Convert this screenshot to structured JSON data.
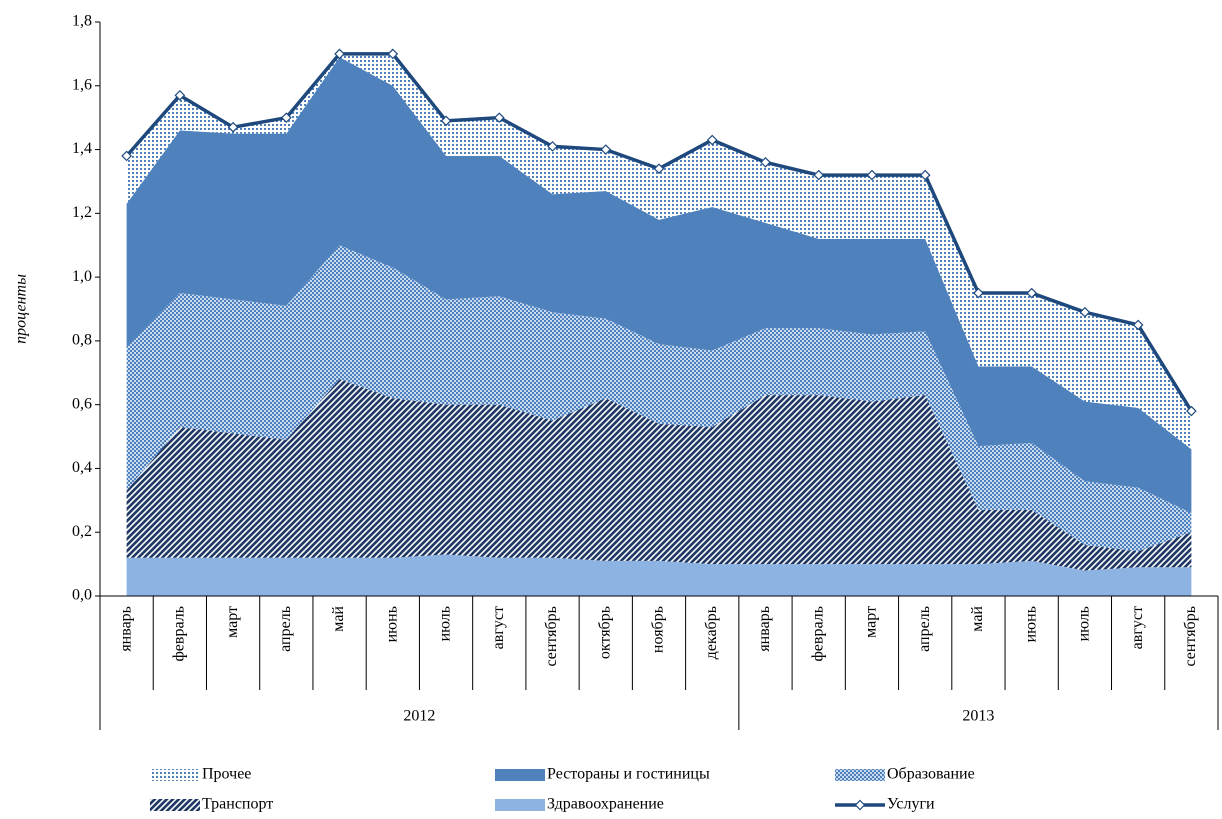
{
  "chart_data": {
    "type": "stacked_area_line",
    "y_label": "проценты",
    "categories": [
      "январь",
      "февраль",
      "март",
      "апрель",
      "май",
      "июнь",
      "июль",
      "август",
      "сентябрь",
      "октябрь",
      "ноябрь",
      "декабрь",
      "январь",
      "февраль",
      "март",
      "апрель",
      "май",
      "июнь",
      "июль",
      "август",
      "сентябрь"
    ],
    "x_groups": [
      {
        "label": "2012",
        "span": 12
      },
      {
        "label": "2013",
        "span": 9
      }
    ],
    "ylim": [
      0,
      1.8
    ],
    "yticks": [
      {
        "value": 0,
        "label": "0,0"
      },
      {
        "value": 0.2,
        "label": "0,2"
      },
      {
        "value": 0.4,
        "label": "0,4"
      },
      {
        "value": 0.6,
        "label": "0,6"
      },
      {
        "value": 0.8,
        "label": "0,8"
      },
      {
        "value": 1.0,
        "label": "1,0"
      },
      {
        "value": 1.2,
        "label": "1,2"
      },
      {
        "value": 1.4,
        "label": "1,4"
      },
      {
        "value": 1.6,
        "label": "1,6"
      },
      {
        "value": 1.8,
        "label": "1,8"
      }
    ],
    "series": [
      {
        "name": "Здравоохранение",
        "color": "#8db3e2",
        "pattern": "solid",
        "values": [
          0.12,
          0.12,
          0.12,
          0.12,
          0.12,
          0.12,
          0.13,
          0.12,
          0.12,
          0.11,
          0.11,
          0.1,
          0.1,
          0.1,
          0.1,
          0.1,
          0.1,
          0.11,
          0.08,
          0.09,
          0.09
        ]
      },
      {
        "name": "Транспорт",
        "color": "#1f3864",
        "pattern": "diagonal",
        "values": [
          0.21,
          0.41,
          0.39,
          0.37,
          0.56,
          0.5,
          0.47,
          0.48,
          0.43,
          0.51,
          0.43,
          0.43,
          0.53,
          0.53,
          0.51,
          0.53,
          0.17,
          0.16,
          0.08,
          0.05,
          0.11
        ]
      },
      {
        "name": "Образование",
        "color": "#4f81bd",
        "pattern": "checker",
        "values": [
          0.45,
          0.42,
          0.42,
          0.42,
          0.42,
          0.41,
          0.33,
          0.34,
          0.34,
          0.25,
          0.25,
          0.24,
          0.21,
          0.21,
          0.21,
          0.2,
          0.2,
          0.21,
          0.2,
          0.2,
          0.06
        ]
      },
      {
        "name": "Рестораны и гостиницы",
        "color": "#4f81bd",
        "pattern": "solid",
        "values": [
          0.45,
          0.51,
          0.52,
          0.54,
          0.59,
          0.57,
          0.45,
          0.44,
          0.37,
          0.4,
          0.39,
          0.45,
          0.33,
          0.28,
          0.3,
          0.29,
          0.25,
          0.24,
          0.25,
          0.25,
          0.2
        ]
      },
      {
        "name": "Прочее",
        "color": "#4f81bd",
        "pattern": "dots",
        "values": [
          0.15,
          0.11,
          0.02,
          0.05,
          0.01,
          0.1,
          0.11,
          0.12,
          0.15,
          0.13,
          0.16,
          0.21,
          0.19,
          0.2,
          0.2,
          0.2,
          0.23,
          0.23,
          0.28,
          0.26,
          0.12
        ]
      },
      {
        "name": "Услуги",
        "color": "#1f497d",
        "kind": "line",
        "values": [
          1.38,
          1.57,
          1.47,
          1.5,
          1.7,
          1.7,
          1.49,
          1.5,
          1.41,
          1.4,
          1.34,
          1.43,
          1.36,
          1.32,
          1.32,
          1.32,
          0.95,
          0.95,
          0.89,
          0.85,
          0.58
        ]
      }
    ],
    "legend_order": [
      4,
      3,
      2,
      1,
      0,
      5
    ]
  }
}
